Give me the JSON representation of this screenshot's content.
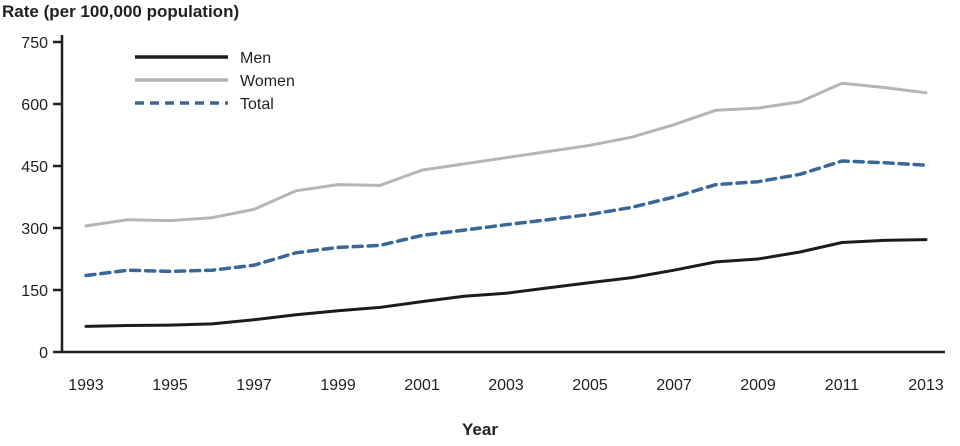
{
  "chart_data": {
    "type": "line",
    "title": "Rate (per 100,000 population)",
    "xlabel": "Year",
    "ylabel": "Rate (per 100,000 population)",
    "ylim": [
      0,
      750
    ],
    "y_ticks": [
      0,
      150,
      300,
      450,
      600,
      750
    ],
    "x_tick_labels": [
      1993,
      1995,
      1997,
      1999,
      2001,
      2003,
      2005,
      2007,
      2009,
      2011,
      2013
    ],
    "categories": [
      1993,
      1994,
      1995,
      1996,
      1997,
      1998,
      1999,
      2000,
      2001,
      2002,
      2003,
      2004,
      2005,
      2006,
      2007,
      2008,
      2009,
      2010,
      2011,
      2012,
      2013
    ],
    "legend_position": "top-left-inside",
    "grid": false,
    "series": [
      {
        "name": "Men",
        "color": "#1c1c1c",
        "dash": "solid",
        "values": [
          62,
          64,
          65,
          68,
          78,
          90,
          100,
          108,
          122,
          135,
          142,
          155,
          168,
          180,
          198,
          218,
          225,
          242,
          265,
          270,
          272
        ]
      },
      {
        "name": "Women",
        "color": "#b5b5b5",
        "dash": "solid",
        "values": [
          305,
          320,
          318,
          325,
          345,
          390,
          405,
          403,
          440,
          455,
          470,
          485,
          500,
          520,
          550,
          585,
          590,
          605,
          650,
          640,
          627
        ]
      },
      {
        "name": "Total",
        "color": "#38689a",
        "dash": "dashed",
        "values": [
          185,
          198,
          195,
          198,
          210,
          240,
          253,
          258,
          282,
          295,
          308,
          320,
          333,
          350,
          375,
          405,
          412,
          430,
          462,
          458,
          452
        ]
      }
    ],
    "axis_color": "#231f20",
    "tick_label_color": "#231f20"
  }
}
